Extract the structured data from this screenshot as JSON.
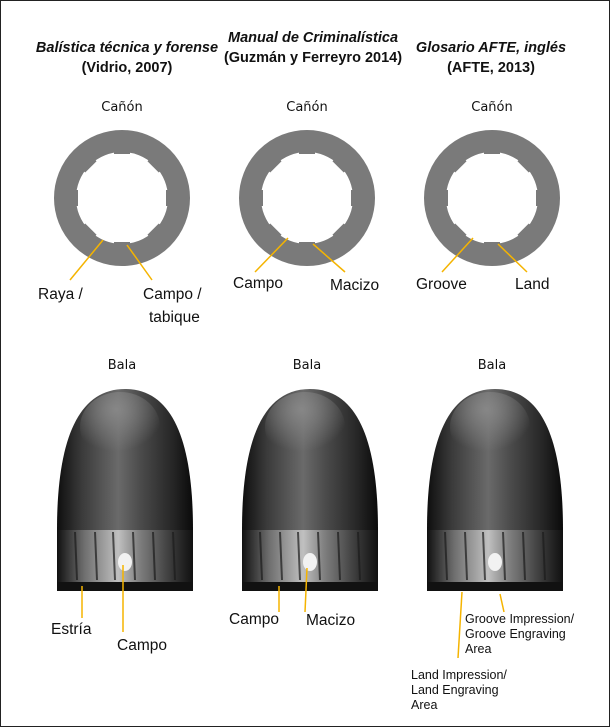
{
  "columns": [
    {
      "source_title": "Balística técnica y forense",
      "source_ref": "(Vidrio, 2007)",
      "barrel_label": "Cañón",
      "bullet_label": "Bala",
      "barrel_labels": [
        "Raya /",
        "Campo /",
        "tabique"
      ],
      "bullet_labels": [
        "Estría",
        "Campo"
      ]
    },
    {
      "source_title": "Manual de Criminalística",
      "source_ref": "(Guzmán y Ferreyro 2014)",
      "barrel_label": "Cañón",
      "bullet_label": "Bala",
      "barrel_labels": [
        "Campo",
        "Macizo"
      ],
      "bullet_labels": [
        "Campo",
        "Macizo"
      ]
    },
    {
      "source_title": "Glosario AFTE, inglés",
      "source_ref": "(AFTE, 2013)",
      "barrel_label": "Cañón",
      "bullet_label": "Bala",
      "barrel_labels": [
        "Groove",
        "Land"
      ],
      "bullet_labels": [
        "Groove Impression/",
        "Groove Engraving",
        "Area",
        "Land Impression/",
        "Land Engraving",
        "Area"
      ]
    }
  ],
  "colors": {
    "ring": "#7a7a7a",
    "arrow": "#f5b400",
    "text": "#111111",
    "bullet_dark": "#2a2a2a"
  }
}
